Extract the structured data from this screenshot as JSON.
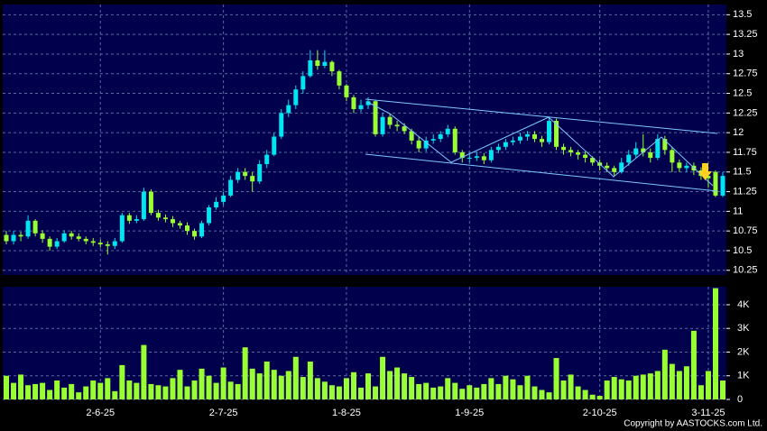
{
  "chart_data": {
    "type": "candlestick",
    "categories": [
      null,
      null,
      null,
      null,
      null,
      null,
      null,
      null,
      null,
      null,
      null,
      null,
      null,
      "2-6-25",
      null,
      null,
      null,
      null,
      null,
      null,
      null,
      null,
      null,
      null,
      null,
      null,
      null,
      null,
      null,
      null,
      "2-7-25",
      null,
      null,
      null,
      null,
      null,
      null,
      null,
      null,
      null,
      null,
      null,
      null,
      null,
      null,
      null,
      null,
      "1-8-25",
      null,
      null,
      null,
      null,
      null,
      null,
      null,
      null,
      null,
      null,
      null,
      null,
      null,
      null,
      null,
      null,
      "1-9-25",
      null,
      null,
      null,
      null,
      null,
      null,
      null,
      null,
      null,
      null,
      null,
      null,
      null,
      null,
      null,
      null,
      null,
      "2-10-25",
      null,
      null,
      null,
      null,
      null,
      null,
      null,
      null,
      null,
      null,
      null,
      null,
      null,
      null,
      "3-11-25",
      null,
      null
    ],
    "open": [
      10.7,
      10.62,
      10.7,
      10.68,
      10.88,
      10.72,
      10.65,
      10.55,
      10.62,
      10.72,
      10.68,
      10.65,
      10.62,
      10.6,
      10.58,
      10.56,
      10.62,
      10.95,
      10.88,
      10.9,
      11.25,
      10.98,
      10.92,
      10.9,
      10.85,
      10.82,
      10.75,
      10.68,
      10.85,
      11.05,
      11.12,
      11.2,
      11.4,
      11.5,
      11.45,
      11.38,
      11.6,
      11.72,
      11.95,
      12.25,
      12.35,
      12.55,
      12.72,
      12.92,
      12.85,
      12.9,
      12.78,
      12.6,
      12.45,
      12.3,
      12.35,
      12.4,
      11.98,
      12.2,
      12.1,
      12.08,
      12.02,
      11.9,
      11.8,
      11.9,
      11.92,
      11.98,
      12.05,
      11.75,
      11.68,
      11.68,
      11.7,
      11.65,
      11.78,
      11.82,
      11.88,
      11.9,
      11.95,
      11.98,
      11.92,
      11.88,
      12.15,
      11.82,
      11.78,
      11.75,
      11.72,
      11.68,
      11.62,
      11.58,
      11.55,
      11.5,
      11.62,
      11.72,
      11.8,
      11.75,
      11.68,
      11.92,
      11.78,
      11.62,
      11.55,
      11.58,
      11.52,
      11.45,
      11.5,
      11.2
    ],
    "high": [
      10.75,
      10.75,
      10.74,
      10.95,
      10.9,
      10.76,
      10.68,
      10.66,
      10.76,
      10.75,
      10.72,
      10.68,
      10.66,
      10.64,
      10.62,
      10.66,
      10.98,
      10.98,
      10.95,
      11.3,
      11.28,
      11.02,
      10.96,
      10.94,
      10.88,
      10.86,
      10.78,
      10.88,
      11.08,
      11.18,
      11.25,
      11.45,
      11.55,
      11.55,
      11.5,
      11.65,
      11.78,
      12.0,
      12.3,
      12.42,
      12.6,
      12.78,
      13.05,
      13.05,
      13.05,
      12.92,
      12.8,
      12.62,
      12.48,
      12.42,
      12.45,
      12.42,
      12.25,
      12.24,
      12.15,
      12.12,
      12.05,
      11.95,
      11.95,
      11.98,
      12.02,
      12.1,
      12.08,
      11.78,
      11.74,
      11.76,
      11.74,
      11.82,
      11.86,
      11.92,
      11.95,
      12.0,
      12.02,
      12.02,
      11.96,
      12.2,
      12.18,
      11.86,
      11.82,
      11.78,
      11.76,
      11.7,
      11.66,
      11.62,
      11.58,
      11.68,
      11.78,
      11.88,
      11.98,
      11.8,
      11.98,
      11.96,
      11.82,
      11.66,
      11.62,
      11.62,
      11.56,
      11.5,
      11.52,
      11.5
    ],
    "low": [
      10.58,
      10.58,
      10.62,
      10.65,
      10.68,
      10.6,
      10.5,
      10.52,
      10.6,
      10.64,
      10.62,
      10.58,
      10.56,
      10.54,
      10.45,
      10.52,
      10.6,
      10.84,
      10.85,
      10.88,
      10.95,
      10.88,
      10.86,
      10.8,
      10.78,
      10.7,
      10.64,
      10.66,
      10.82,
      11.02,
      11.08,
      11.18,
      11.36,
      11.4,
      11.25,
      11.35,
      11.55,
      11.7,
      11.92,
      12.2,
      12.3,
      12.5,
      12.7,
      12.8,
      12.82,
      12.72,
      12.55,
      12.4,
      12.25,
      12.26,
      12.3,
      11.95,
      11.95,
      12.05,
      12.02,
      11.98,
      11.85,
      11.75,
      11.76,
      11.86,
      11.88,
      11.94,
      11.72,
      11.62,
      11.62,
      11.64,
      11.6,
      11.62,
      11.74,
      11.78,
      11.84,
      11.86,
      11.9,
      11.88,
      11.82,
      11.85,
      11.78,
      11.72,
      11.7,
      11.66,
      11.62,
      11.58,
      11.52,
      11.5,
      11.45,
      11.48,
      11.58,
      11.68,
      11.7,
      11.62,
      11.65,
      11.72,
      11.5,
      11.5,
      11.5,
      11.46,
      11.4,
      11.3,
      11.18,
      11.18
    ],
    "close": [
      10.62,
      10.7,
      10.68,
      10.88,
      10.72,
      10.65,
      10.55,
      10.62,
      10.72,
      10.68,
      10.65,
      10.62,
      10.6,
      10.58,
      10.56,
      10.62,
      10.95,
      10.88,
      10.9,
      11.25,
      10.98,
      10.92,
      10.9,
      10.85,
      10.82,
      10.75,
      10.68,
      10.85,
      11.05,
      11.12,
      11.2,
      11.4,
      11.5,
      11.45,
      11.38,
      11.6,
      11.72,
      11.95,
      12.25,
      12.35,
      12.55,
      12.72,
      12.92,
      12.85,
      12.9,
      12.78,
      12.6,
      12.45,
      12.3,
      12.35,
      12.4,
      11.98,
      12.2,
      12.1,
      12.08,
      12.02,
      11.9,
      11.8,
      11.9,
      11.92,
      11.98,
      12.05,
      11.75,
      11.68,
      11.68,
      11.7,
      11.65,
      11.78,
      11.82,
      11.88,
      11.9,
      11.95,
      11.98,
      11.92,
      11.88,
      12.15,
      11.82,
      11.78,
      11.75,
      11.72,
      11.68,
      11.62,
      11.58,
      11.55,
      11.5,
      11.62,
      11.72,
      11.8,
      11.75,
      11.68,
      11.92,
      11.78,
      11.62,
      11.55,
      11.58,
      11.52,
      11.45,
      11.42,
      11.2,
      11.45
    ],
    "up_color": "#00e5f0",
    "down_color": "#99ff33",
    "ylim": [
      10.19,
      13.63
    ],
    "yticks": [
      10.25,
      10.5,
      10.75,
      11,
      11.25,
      11.5,
      11.75,
      12,
      12.25,
      12.5,
      12.75,
      13,
      13.25,
      13.5
    ],
    "grid": true,
    "volume": {
      "type": "bar",
      "color": "#99ff33",
      "values": [
        1000,
        700,
        1050,
        600,
        650,
        700,
        400,
        800,
        500,
        650,
        300,
        550,
        800,
        700,
        900,
        350,
        1450,
        800,
        700,
        2300,
        650,
        600,
        550,
        900,
        1250,
        550,
        800,
        1300,
        1000,
        700,
        1350,
        750,
        650,
        2200,
        1300,
        1100,
        1600,
        1250,
        1000,
        1200,
        1800,
        950,
        1600,
        900,
        750,
        600,
        550,
        900,
        1150,
        500,
        1100,
        550,
        1800,
        1200,
        1350,
        1100,
        950,
        650,
        700,
        500,
        550,
        900,
        700,
        450,
        600,
        500,
        650,
        900,
        650,
        1000,
        850,
        600,
        1000,
        550,
        400,
        300,
        1750,
        800,
        1050,
        550,
        400,
        200,
        150,
        800,
        950,
        850,
        800,
        1000,
        1050,
        1100,
        1200,
        2100,
        1500,
        1200,
        1400,
        2900,
        600,
        1200,
        4700,
        800
      ],
      "ylim": [
        0,
        4760
      ],
      "yticks": [
        0,
        {
          "value": 1000,
          "label": "1K"
        },
        {
          "value": 2000,
          "label": "2K"
        },
        {
          "value": 3000,
          "label": "3K"
        },
        {
          "value": 4000,
          "label": "4K"
        }
      ]
    },
    "source": "Copyright by AASTOCKS.com Ltd."
  }
}
